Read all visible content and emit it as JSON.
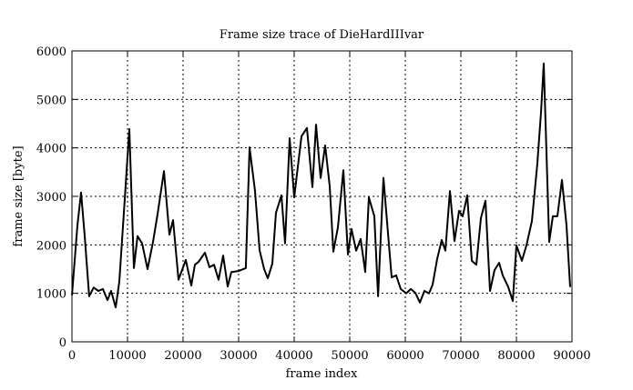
{
  "chart_data": {
    "type": "line",
    "title": "Frame size trace of DieHardIIIvar",
    "xlabel": "frame index",
    "ylabel": "frame size [byte]",
    "xlim": [
      0,
      90000
    ],
    "ylim": [
      0,
      6000
    ],
    "xticks": [
      "0",
      "10000",
      "20000",
      "30000",
      "40000",
      "50000",
      "60000",
      "70000",
      "80000",
      "90000"
    ],
    "yticks": [
      "0",
      "1000",
      "2000",
      "3000",
      "4000",
      "5000",
      "6000"
    ],
    "grid": true,
    "line_color": "#000000",
    "series": [
      {
        "x": [
          0,
          980,
          1640,
          2300,
          3100,
          3900,
          4750,
          5570,
          6390,
          7050,
          7870,
          8520,
          9500,
          10330,
          11150,
          11800,
          12620,
          13600,
          14590,
          15400,
          16560,
          17540,
          18200,
          19180,
          20490,
          21470,
          22130,
          22790,
          23930,
          24760,
          25570,
          26390,
          27210,
          28030,
          28690,
          29990,
          31300,
          31960,
          32950,
          33770,
          34590,
          35250,
          36070,
          36720,
          37700,
          38360,
          39180,
          40000,
          41310,
          42300,
          43280,
          43930,
          44750,
          45580,
          46390,
          47050,
          47870,
          48850,
          49670,
          50310,
          51150,
          51970,
          52780,
          53440,
          54430,
          55100,
          56070,
          57540,
          58360,
          59180,
          60160,
          60980,
          61800,
          62620,
          63440,
          64260,
          64920,
          65740,
          66560,
          67210,
          68030,
          68850,
          69670,
          70330,
          71150,
          71970,
          72790,
          73610,
          74430,
          75250,
          76070,
          76890,
          77540,
          78530,
          79340,
          80000,
          80980,
          81800,
          82790,
          83770,
          84430,
          84920,
          85900,
          86560,
          87380,
          88200,
          89020,
          89670
        ],
        "y": [
          960,
          2400,
          3080,
          2180,
          940,
          1120,
          1050,
          1090,
          860,
          1050,
          710,
          1240,
          2920,
          4390,
          1520,
          2180,
          2030,
          1500,
          2060,
          2620,
          3520,
          2210,
          2510,
          1280,
          1690,
          1160,
          1590,
          1650,
          1840,
          1540,
          1590,
          1280,
          1780,
          1140,
          1440,
          1460,
          1520,
          4010,
          3110,
          1890,
          1500,
          1310,
          1610,
          2660,
          3020,
          2030,
          4200,
          2980,
          4240,
          4410,
          3190,
          4480,
          3380,
          4050,
          3210,
          1860,
          2360,
          3540,
          1800,
          2330,
          1880,
          2120,
          1440,
          2980,
          2590,
          940,
          3380,
          1330,
          1370,
          1090,
          1000,
          1090,
          1010,
          810,
          1050,
          1000,
          1180,
          1710,
          2100,
          1880,
          3110,
          2080,
          2700,
          2590,
          3020,
          1670,
          1590,
          2550,
          2910,
          1050,
          1480,
          1630,
          1370,
          1130,
          840,
          1990,
          1670,
          1990,
          2490,
          3680,
          4730,
          5740,
          2060,
          2590,
          2590,
          3340,
          2400,
          1130
        ]
      }
    ]
  }
}
